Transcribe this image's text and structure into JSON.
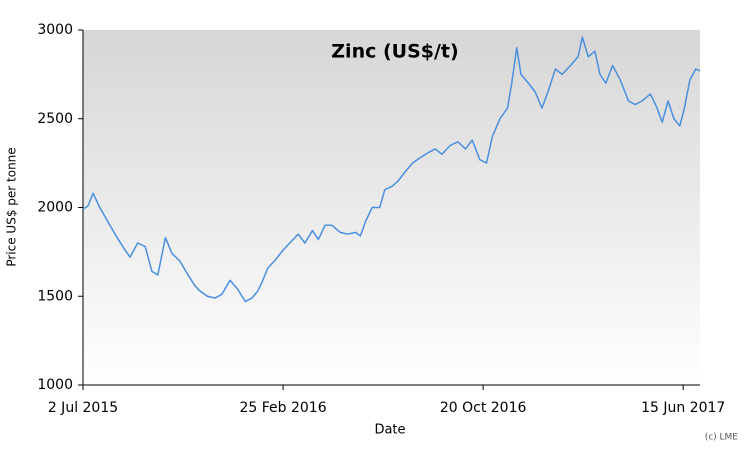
{
  "chart_data": {
    "type": "line",
    "title": "Zinc (US$/t)",
    "x_label": "Date",
    "y_label": "Price US$ per tonne",
    "credit": "(c) LME",
    "x": [
      "2015-07-02",
      "2015-07-08",
      "2015-07-14",
      "2015-07-22",
      "2015-08-03",
      "2015-08-13",
      "2015-08-21",
      "2015-08-27",
      "2015-09-05",
      "2015-09-14",
      "2015-09-22",
      "2015-09-29",
      "2015-10-08",
      "2015-10-16",
      "2015-10-25",
      "2015-11-04",
      "2015-11-12",
      "2015-11-18",
      "2015-11-27",
      "2015-12-06",
      "2015-12-14",
      "2015-12-24",
      "2016-01-02",
      "2016-01-11",
      "2016-01-19",
      "2016-01-26",
      "2016-01-31",
      "2016-02-07",
      "2016-02-15",
      "2016-02-25",
      "2016-03-04",
      "2016-03-14",
      "2016-03-22",
      "2016-03-31",
      "2016-04-07",
      "2016-04-15",
      "2016-04-23",
      "2016-05-03",
      "2016-05-12",
      "2016-05-21",
      "2016-05-27",
      "2016-06-02",
      "2016-06-10",
      "2016-06-19",
      "2016-06-25",
      "2016-07-04",
      "2016-07-11",
      "2016-07-19",
      "2016-07-28",
      "2016-08-06",
      "2016-08-16",
      "2016-08-24",
      "2016-09-01",
      "2016-09-11",
      "2016-09-20",
      "2016-09-29",
      "2016-10-07",
      "2016-10-16",
      "2016-10-24",
      "2016-10-31",
      "2016-11-09",
      "2016-11-18",
      "2016-11-23",
      "2016-11-29",
      "2016-12-04",
      "2016-12-13",
      "2016-12-21",
      "2016-12-29",
      "2017-01-05",
      "2017-01-14",
      "2017-01-22",
      "2017-02-01",
      "2017-02-10",
      "2017-02-15",
      "2017-02-22",
      "2017-03-02",
      "2017-03-08",
      "2017-03-15",
      "2017-03-23",
      "2017-04-01",
      "2017-04-11",
      "2017-04-19",
      "2017-04-27",
      "2017-05-07",
      "2017-05-15",
      "2017-05-21",
      "2017-05-28",
      "2017-06-04",
      "2017-06-11",
      "2017-06-16",
      "2017-06-23",
      "2017-06-30",
      "2017-07-05"
    ],
    "series": [
      {
        "name": "Zinc",
        "color": "#4a8fe0",
        "values": [
          1990,
          2010,
          2080,
          2000,
          1900,
          1820,
          1760,
          1720,
          1800,
          1780,
          1640,
          1620,
          1830,
          1740,
          1700,
          1620,
          1560,
          1530,
          1500,
          1490,
          1510,
          1590,
          1540,
          1470,
          1490,
          1530,
          1580,
          1660,
          1700,
          1760,
          1800,
          1850,
          1800,
          1870,
          1820,
          1900,
          1900,
          1860,
          1850,
          1860,
          1840,
          1920,
          2000,
          2000,
          2100,
          2120,
          2150,
          2200,
          2250,
          2280,
          2310,
          2330,
          2300,
          2350,
          2370,
          2330,
          2380,
          2270,
          2250,
          2400,
          2500,
          2560,
          2700,
          2900,
          2750,
          2700,
          2650,
          2560,
          2650,
          2780,
          2750,
          2800,
          2850,
          2960,
          2850,
          2880,
          2750,
          2700,
          2800,
          2720,
          2600,
          2580,
          2600,
          2640,
          2560,
          2480,
          2600,
          2500,
          2460,
          2550,
          2720,
          2780,
          2770
        ]
      }
    ],
    "xlim": [
      "2015-07-02",
      "2017-07-05"
    ],
    "xticks": [
      {
        "value": "2015-07-02",
        "label": "2 Jul 2015"
      },
      {
        "value": "2016-02-25",
        "label": "25 Feb 2016"
      },
      {
        "value": "2016-10-20",
        "label": "20 Oct 2016"
      },
      {
        "value": "2017-06-15",
        "label": "15 Jun 2017"
      }
    ],
    "ylim": [
      1000,
      3000
    ],
    "yticks": [
      1000,
      1500,
      2000,
      2500,
      3000
    ],
    "grid": false
  }
}
